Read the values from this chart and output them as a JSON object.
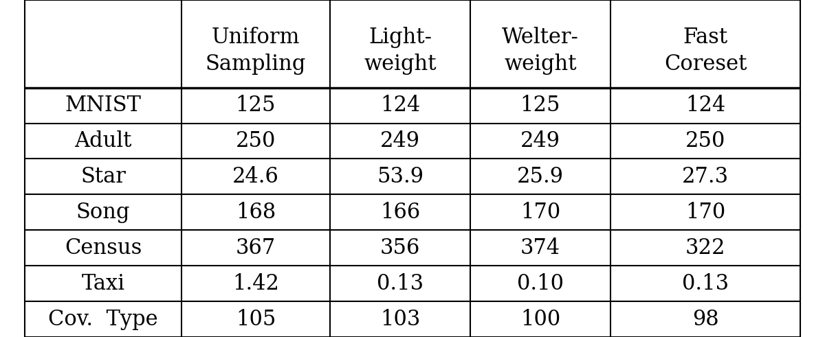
{
  "col_header_line1": [
    "Uniform",
    "Light-",
    "Welter-",
    "Fast"
  ],
  "col_header_line2": [
    "Sampling",
    "weight",
    "weight",
    "Coreset"
  ],
  "row_labels": [
    "MNIST",
    "Adult",
    "Star",
    "Song",
    "Census",
    "Taxi",
    "Cov.  Type"
  ],
  "data": [
    [
      "125",
      "124",
      "125",
      "124"
    ],
    [
      "250",
      "249",
      "249",
      "250"
    ],
    [
      "24.6",
      "53.9",
      "25.9",
      "27.3"
    ],
    [
      "168",
      "166",
      "170",
      "170"
    ],
    [
      "367",
      "356",
      "374",
      "322"
    ],
    [
      "1.42",
      "0.13",
      "0.10",
      "0.13"
    ],
    [
      "105",
      "103",
      "100",
      "98"
    ]
  ],
  "bg_color": "#ffffff",
  "text_color": "#000000",
  "font_size": 22,
  "header_font_size": 22,
  "thin_lw": 1.5,
  "thick_lw": 2.5,
  "figwidth": 12.0,
  "figheight": 4.91,
  "dpi": 100
}
